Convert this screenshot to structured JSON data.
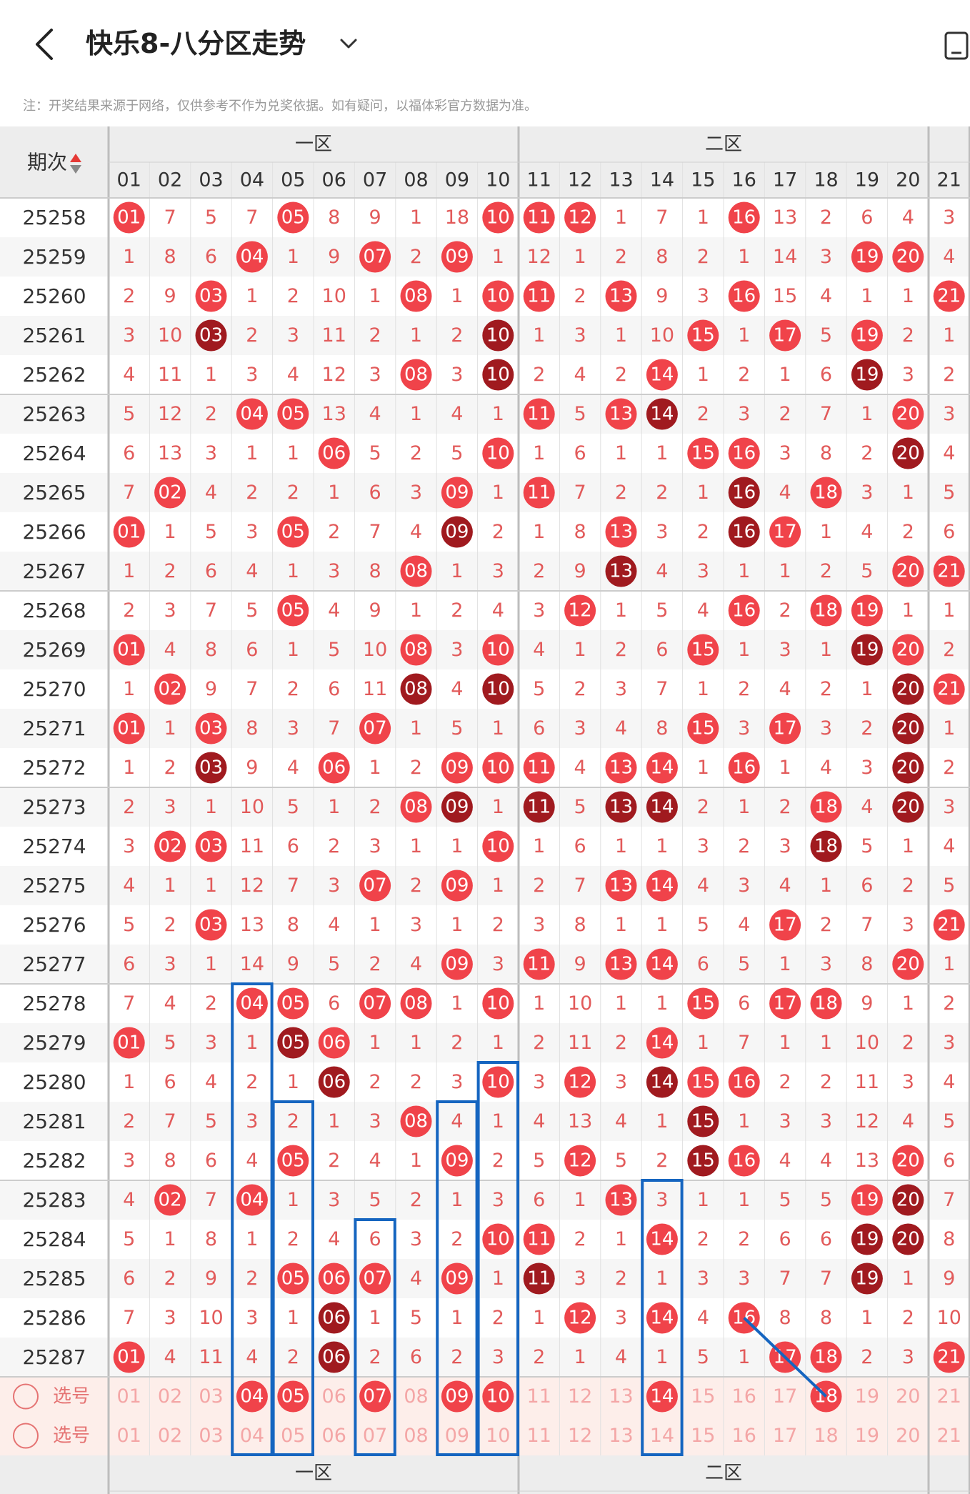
{
  "header": {
    "title": "快乐8-八分区走势",
    "disclaimer": "注：开奖结果来源于网络，仅供参考不作为兑奖依据。如有疑问，以福体彩官方数据为准。"
  },
  "table": {
    "period_header": "期次",
    "zones": [
      {
        "label": "一区",
        "from": 0,
        "to": 9
      },
      {
        "label": "二区",
        "from": 10,
        "to": 19
      },
      {
        "label": "",
        "from": 20,
        "to": 20
      }
    ],
    "columns": [
      "01",
      "02",
      "03",
      "04",
      "05",
      "06",
      "07",
      "08",
      "09",
      "10",
      "11",
      "12",
      "13",
      "14",
      "15",
      "16",
      "17",
      "18",
      "19",
      "20",
      "21"
    ],
    "rows": [
      {
        "period": "25258",
        "cells": [
          "01",
          "7",
          "5",
          "7",
          "05",
          "8",
          "9",
          "1",
          "18",
          "10",
          "11",
          "12",
          "1",
          "7",
          "1",
          "16",
          "13",
          "2",
          "6",
          "4",
          "3"
        ]
      },
      {
        "period": "25259",
        "cells": [
          "1",
          "8",
          "6",
          "04",
          "1",
          "9",
          "07",
          "2",
          "09",
          "1",
          "12",
          "1",
          "2",
          "8",
          "2",
          "1",
          "14",
          "3",
          "19",
          "20",
          "4"
        ]
      },
      {
        "period": "25260",
        "cells": [
          "2",
          "9",
          "03",
          "1",
          "2",
          "10",
          "1",
          "08",
          "1",
          "10",
          "11",
          "2",
          "13",
          "9",
          "3",
          "16",
          "15",
          "4",
          "1",
          "1",
          "21"
        ]
      },
      {
        "period": "25261",
        "cells": [
          "3",
          "10",
          "03",
          "2",
          "3",
          "11",
          "2",
          "1",
          "2",
          "10",
          "1",
          "3",
          "1",
          "10",
          "15",
          "1",
          "17",
          "5",
          "19",
          "2",
          "1"
        ]
      },
      {
        "period": "25262",
        "cells": [
          "4",
          "11",
          "1",
          "3",
          "4",
          "12",
          "3",
          "08",
          "3",
          "10",
          "2",
          "4",
          "2",
          "14",
          "1",
          "2",
          "1",
          "6",
          "19",
          "3",
          "2"
        ]
      },
      {
        "period": "25263",
        "cells": [
          "5",
          "12",
          "2",
          "04",
          "05",
          "13",
          "4",
          "1",
          "4",
          "1",
          "11",
          "5",
          "13",
          "14",
          "2",
          "3",
          "2",
          "7",
          "1",
          "20",
          "3"
        ]
      },
      {
        "period": "25264",
        "cells": [
          "6",
          "13",
          "3",
          "1",
          "1",
          "06",
          "5",
          "2",
          "5",
          "10",
          "1",
          "6",
          "1",
          "1",
          "15",
          "16",
          "3",
          "8",
          "2",
          "20",
          "4"
        ]
      },
      {
        "period": "25265",
        "cells": [
          "7",
          "02",
          "4",
          "2",
          "2",
          "1",
          "6",
          "3",
          "09",
          "1",
          "11",
          "7",
          "2",
          "2",
          "1",
          "16",
          "4",
          "18",
          "3",
          "1",
          "5"
        ]
      },
      {
        "period": "25266",
        "cells": [
          "01",
          "1",
          "5",
          "3",
          "05",
          "2",
          "7",
          "4",
          "09",
          "2",
          "1",
          "8",
          "13",
          "3",
          "2",
          "16",
          "17",
          "1",
          "4",
          "2",
          "6"
        ]
      },
      {
        "period": "25267",
        "cells": [
          "1",
          "2",
          "6",
          "4",
          "1",
          "3",
          "8",
          "08",
          "1",
          "3",
          "2",
          "9",
          "13",
          "4",
          "3",
          "1",
          "1",
          "2",
          "5",
          "20",
          "21"
        ]
      },
      {
        "period": "25268",
        "cells": [
          "2",
          "3",
          "7",
          "5",
          "05",
          "4",
          "9",
          "1",
          "2",
          "4",
          "3",
          "12",
          "1",
          "5",
          "4",
          "16",
          "2",
          "18",
          "19",
          "1",
          "1"
        ]
      },
      {
        "period": "25269",
        "cells": [
          "01",
          "4",
          "8",
          "6",
          "1",
          "5",
          "10",
          "08",
          "3",
          "10",
          "4",
          "1",
          "2",
          "6",
          "15",
          "1",
          "3",
          "1",
          "19",
          "20",
          "2"
        ]
      },
      {
        "period": "25270",
        "cells": [
          "1",
          "02",
          "9",
          "7",
          "2",
          "6",
          "11",
          "08",
          "4",
          "10",
          "5",
          "2",
          "3",
          "7",
          "1",
          "2",
          "4",
          "2",
          "1",
          "20",
          "21"
        ]
      },
      {
        "period": "25271",
        "cells": [
          "01",
          "1",
          "03",
          "8",
          "3",
          "7",
          "07",
          "1",
          "5",
          "1",
          "6",
          "3",
          "4",
          "8",
          "15",
          "3",
          "17",
          "3",
          "2",
          "20",
          "1"
        ]
      },
      {
        "period": "25272",
        "cells": [
          "1",
          "2",
          "03",
          "9",
          "4",
          "06",
          "1",
          "2",
          "09",
          "10",
          "11",
          "4",
          "13",
          "14",
          "1",
          "16",
          "1",
          "4",
          "3",
          "20",
          "2"
        ]
      },
      {
        "period": "25273",
        "cells": [
          "2",
          "3",
          "1",
          "10",
          "5",
          "1",
          "2",
          "08",
          "09",
          "1",
          "11",
          "5",
          "13",
          "14",
          "2",
          "1",
          "2",
          "18",
          "4",
          "20",
          "3"
        ]
      },
      {
        "period": "25274",
        "cells": [
          "3",
          "02",
          "03",
          "11",
          "6",
          "2",
          "3",
          "1",
          "1",
          "10",
          "1",
          "6",
          "1",
          "1",
          "3",
          "2",
          "3",
          "18",
          "5",
          "1",
          "4"
        ]
      },
      {
        "period": "25275",
        "cells": [
          "4",
          "1",
          "1",
          "12",
          "7",
          "3",
          "07",
          "2",
          "09",
          "1",
          "2",
          "7",
          "13",
          "14",
          "4",
          "3",
          "4",
          "1",
          "6",
          "2",
          "5"
        ]
      },
      {
        "period": "25276",
        "cells": [
          "5",
          "2",
          "03",
          "13",
          "8",
          "4",
          "1",
          "3",
          "1",
          "2",
          "3",
          "8",
          "1",
          "1",
          "5",
          "4",
          "17",
          "2",
          "7",
          "3",
          "21"
        ]
      },
      {
        "period": "25277",
        "cells": [
          "6",
          "3",
          "1",
          "14",
          "9",
          "5",
          "2",
          "4",
          "09",
          "3",
          "11",
          "9",
          "13",
          "14",
          "6",
          "5",
          "1",
          "3",
          "8",
          "20",
          "1"
        ]
      },
      {
        "period": "25278",
        "cells": [
          "7",
          "4",
          "2",
          "04",
          "05",
          "6",
          "07",
          "08",
          "1",
          "10",
          "1",
          "10",
          "1",
          "1",
          "15",
          "6",
          "17",
          "18",
          "9",
          "1",
          "2"
        ]
      },
      {
        "period": "25279",
        "cells": [
          "01",
          "5",
          "3",
          "1",
          "05",
          "06",
          "1",
          "1",
          "2",
          "1",
          "2",
          "11",
          "2",
          "14",
          "1",
          "7",
          "1",
          "1",
          "10",
          "2",
          "3"
        ]
      },
      {
        "period": "25280",
        "cells": [
          "1",
          "6",
          "4",
          "2",
          "1",
          "06",
          "2",
          "2",
          "3",
          "10",
          "3",
          "12",
          "3",
          "14",
          "15",
          "16",
          "2",
          "2",
          "11",
          "3",
          "4"
        ]
      },
      {
        "period": "25281",
        "cells": [
          "2",
          "7",
          "5",
          "3",
          "2",
          "1",
          "3",
          "08",
          "4",
          "1",
          "4",
          "13",
          "4",
          "1",
          "15",
          "1",
          "3",
          "3",
          "12",
          "4",
          "5"
        ]
      },
      {
        "period": "25282",
        "cells": [
          "3",
          "8",
          "6",
          "4",
          "05",
          "2",
          "4",
          "1",
          "09",
          "2",
          "5",
          "12",
          "5",
          "2",
          "15",
          "16",
          "4",
          "4",
          "13",
          "20",
          "6"
        ]
      },
      {
        "period": "25283",
        "cells": [
          "4",
          "02",
          "7",
          "04",
          "1",
          "3",
          "5",
          "2",
          "1",
          "3",
          "6",
          "1",
          "13",
          "3",
          "1",
          "1",
          "5",
          "5",
          "19",
          "20",
          "7"
        ]
      },
      {
        "period": "25284",
        "cells": [
          "5",
          "1",
          "8",
          "1",
          "2",
          "4",
          "6",
          "3",
          "2",
          "10",
          "11",
          "2",
          "1",
          "14",
          "2",
          "2",
          "6",
          "6",
          "19",
          "20",
          "8"
        ]
      },
      {
        "period": "25285",
        "cells": [
          "6",
          "2",
          "9",
          "2",
          "05",
          "06",
          "07",
          "4",
          "09",
          "1",
          "11",
          "3",
          "2",
          "1",
          "3",
          "3",
          "7",
          "7",
          "19",
          "1",
          "9"
        ]
      },
      {
        "period": "25286",
        "cells": [
          "7",
          "3",
          "10",
          "3",
          "1",
          "06",
          "1",
          "5",
          "1",
          "2",
          "1",
          "12",
          "3",
          "14",
          "4",
          "16",
          "8",
          "8",
          "1",
          "2",
          "10"
        ]
      },
      {
        "period": "25287",
        "cells": [
          "01",
          "4",
          "11",
          "4",
          "2",
          "06",
          "2",
          "6",
          "2",
          "3",
          "2",
          "1",
          "4",
          "1",
          "5",
          "1",
          "17",
          "18",
          "2",
          "3",
          "21"
        ]
      }
    ],
    "select_rows": [
      {
        "label": "选号",
        "selected": [
          "04",
          "05",
          "07",
          "09",
          "10",
          "14",
          "18"
        ]
      },
      {
        "label": "选号",
        "selected": []
      }
    ],
    "colors": {
      "hot_ball": "#f0434a",
      "repeat_ball": "#a01a1f",
      "number_text": "#e25a5a",
      "highlight_box": "#1565c0",
      "select_row_bg": "#fdeeea"
    }
  }
}
